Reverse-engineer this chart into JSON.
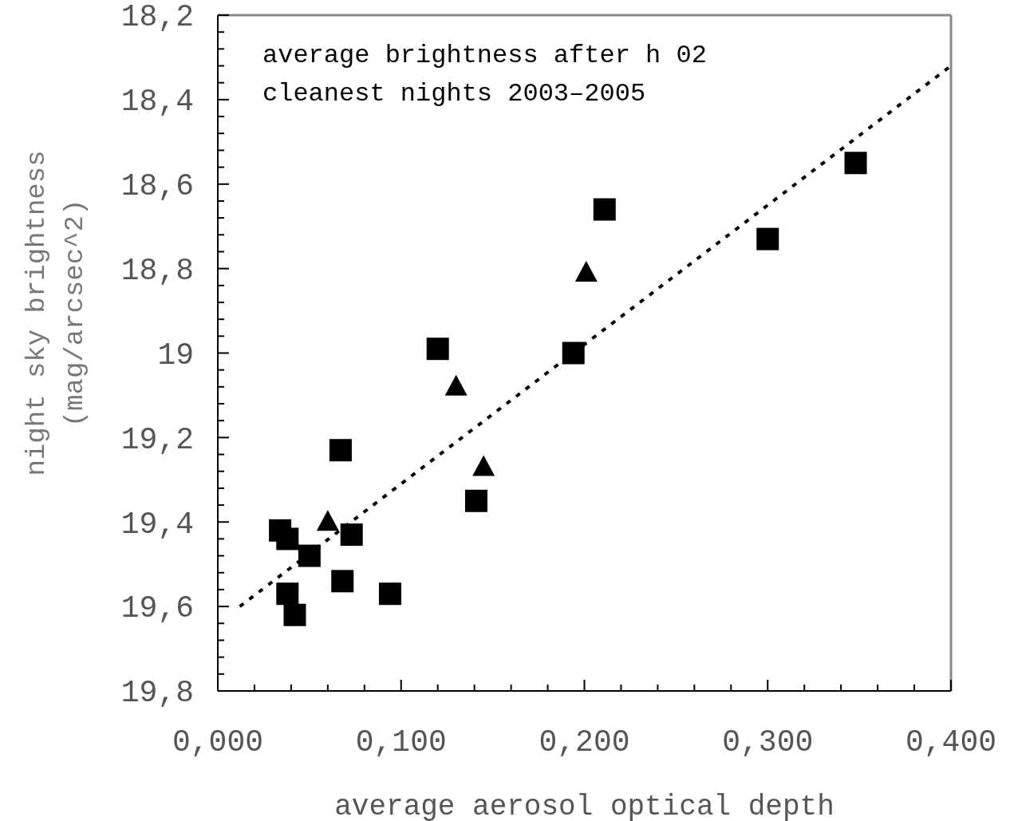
{
  "chart_data": {
    "type": "scatter",
    "xlabel": "average aerosol optical depth",
    "ylabel": "night sky brightness\n(mag/arcsec^2)",
    "annotations": [
      "average brightness after h 02",
      "cleanest nights 2003–2005"
    ],
    "xlim": [
      0,
      0.4
    ],
    "ylim": [
      19.8,
      18.2
    ],
    "xticks": [
      {
        "value": 0,
        "label": "0,000"
      },
      {
        "value": 0.02,
        "label": null
      },
      {
        "value": 0.04,
        "label": null
      },
      {
        "value": 0.06,
        "label": null
      },
      {
        "value": 0.08,
        "label": null
      },
      {
        "value": 0.1,
        "label": "0,100"
      },
      {
        "value": 0.12,
        "label": null
      },
      {
        "value": 0.14,
        "label": null
      },
      {
        "value": 0.16,
        "label": null
      },
      {
        "value": 0.18,
        "label": null
      },
      {
        "value": 0.2,
        "label": "0,200"
      },
      {
        "value": 0.22,
        "label": null
      },
      {
        "value": 0.24,
        "label": null
      },
      {
        "value": 0.26,
        "label": null
      },
      {
        "value": 0.28,
        "label": null
      },
      {
        "value": 0.3,
        "label": "0,300"
      },
      {
        "value": 0.32,
        "label": null
      },
      {
        "value": 0.34,
        "label": null
      },
      {
        "value": 0.36,
        "label": null
      },
      {
        "value": 0.38,
        "label": null
      },
      {
        "value": 0.4,
        "label": "0,400"
      }
    ],
    "yticks": [
      {
        "value": 18.2,
        "label": "18,2"
      },
      {
        "value": 18.24,
        "label": null
      },
      {
        "value": 18.28,
        "label": null
      },
      {
        "value": 18.32,
        "label": null
      },
      {
        "value": 18.36,
        "label": null
      },
      {
        "value": 18.4,
        "label": "18,4"
      },
      {
        "value": 18.44,
        "label": null
      },
      {
        "value": 18.48,
        "label": null
      },
      {
        "value": 18.52,
        "label": null
      },
      {
        "value": 18.56,
        "label": null
      },
      {
        "value": 18.6,
        "label": "18,6"
      },
      {
        "value": 18.64,
        "label": null
      },
      {
        "value": 18.68,
        "label": null
      },
      {
        "value": 18.72,
        "label": null
      },
      {
        "value": 18.76,
        "label": null
      },
      {
        "value": 18.8,
        "label": "18,8"
      },
      {
        "value": 18.84,
        "label": null
      },
      {
        "value": 18.88,
        "label": null
      },
      {
        "value": 18.92,
        "label": null
      },
      {
        "value": 18.96,
        "label": null
      },
      {
        "value": 19,
        "label": "19"
      },
      {
        "value": 19.04,
        "label": null
      },
      {
        "value": 19.08,
        "label": null
      },
      {
        "value": 19.12,
        "label": null
      },
      {
        "value": 19.16,
        "label": null
      },
      {
        "value": 19.2,
        "label": "19,2"
      },
      {
        "value": 19.24,
        "label": null
      },
      {
        "value": 19.28,
        "label": null
      },
      {
        "value": 19.32,
        "label": null
      },
      {
        "value": 19.36,
        "label": null
      },
      {
        "value": 19.4,
        "label": "19,4"
      },
      {
        "value": 19.44,
        "label": null
      },
      {
        "value": 19.48,
        "label": null
      },
      {
        "value": 19.52,
        "label": null
      },
      {
        "value": 19.56,
        "label": null
      },
      {
        "value": 19.6,
        "label": "19,6"
      },
      {
        "value": 19.64,
        "label": null
      },
      {
        "value": 19.68,
        "label": null
      },
      {
        "value": 19.72,
        "label": null
      },
      {
        "value": 19.76,
        "label": null
      },
      {
        "value": 19.8,
        "label": "19,8"
      }
    ],
    "grid": false,
    "series": [
      {
        "color": "#000000",
        "marker": "square",
        "x": [
          0.034,
          0.038,
          0.05,
          0.067,
          0.073,
          0.068,
          0.038,
          0.042,
          0.094,
          0.12,
          0.141,
          0.194,
          0.211,
          0.3,
          0.348
        ],
        "values": [
          19.42,
          19.44,
          19.48,
          19.23,
          19.43,
          19.54,
          19.57,
          19.62,
          19.57,
          18.99,
          19.35,
          19.0,
          18.66,
          18.73,
          18.55
        ]
      },
      {
        "color": "#000000",
        "marker": "triangle",
        "x": [
          0.06,
          0.13,
          0.145,
          0.201
        ],
        "values": [
          19.4,
          19.08,
          19.27,
          18.81
        ]
      },
      {
        "type": "line",
        "color": "#000000",
        "marker": "none",
        "line_style": "dashed",
        "x": [
          0.012,
          0.4
        ],
        "values": [
          19.6,
          18.32
        ]
      }
    ]
  }
}
